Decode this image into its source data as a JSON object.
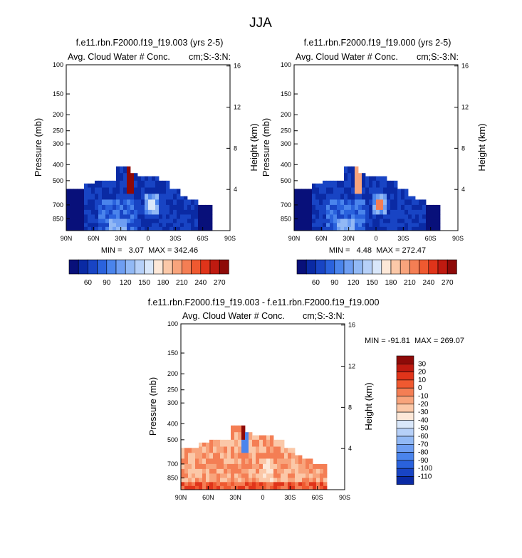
{
  "title": "JJA",
  "palette": {
    "blue_red": [
      "#08107a",
      "#0a2aa4",
      "#1844c4",
      "#2a62dd",
      "#4a84ec",
      "#6e9ef2",
      "#92b9f5",
      "#b6d0f8",
      "#d9e7fa",
      "#fde8d8",
      "#fbc8a8",
      "#f8a47c",
      "#f47e54",
      "#ef5930",
      "#e0341a",
      "#bf1a10",
      "#8e0a08"
    ]
  },
  "chart_data": [
    {
      "type": "heatmap",
      "panel": "panel1",
      "title": "f.e11.rbn.F2000.f19_f19.003 (yrs 2-5)",
      "subtitle_left": "Avg. Cloud Water # Conc.",
      "subtitle_right": "cm;S:-3:N:",
      "ylabel": "Pressure (mb)",
      "ylabel_right": "Height (km)",
      "x_ticks": [
        "90N",
        "60N",
        "30N",
        "0",
        "30S",
        "60S",
        "90S"
      ],
      "y_ticks": [
        "100",
        "150",
        "200",
        "250",
        "300",
        "400",
        "500",
        "700",
        "850"
      ],
      "y_right_ticks": [
        "16",
        "12",
        "8",
        "4"
      ],
      "stats": "MIN =   3.07  MAX = 342.46",
      "stats_min": 3.07,
      "stats_max": 342.46,
      "xlim": [
        90,
        -90
      ],
      "ylim": [
        1000,
        100
      ],
      "colorbar_levels": [
        "60",
        "90",
        "120",
        "150",
        "180",
        "210",
        "240",
        "270"
      ]
    },
    {
      "type": "heatmap",
      "panel": "panel2",
      "title": "f.e11.rbn.F2000.f19_f19.000 (yrs 2-5)",
      "subtitle_left": "Avg. Cloud Water # Conc.",
      "subtitle_right": "cm;S:-3:N:",
      "ylabel": "Pressure (mb)",
      "ylabel_right": "Height (km)",
      "x_ticks": [
        "90N",
        "60N",
        "30N",
        "0",
        "30S",
        "60S",
        "90S"
      ],
      "y_ticks": [
        "100",
        "150",
        "200",
        "250",
        "300",
        "400",
        "500",
        "700",
        "850"
      ],
      "y_right_ticks": [
        "16",
        "12",
        "8",
        "4"
      ],
      "stats": "MIN =   4.48  MAX = 272.47",
      "stats_min": 4.48,
      "stats_max": 272.47,
      "xlim": [
        90,
        -90
      ],
      "ylim": [
        1000,
        100
      ],
      "colorbar_levels": [
        "60",
        "90",
        "120",
        "150",
        "180",
        "210",
        "240",
        "270"
      ]
    },
    {
      "type": "heatmap",
      "panel": "panel3",
      "title": "f.e11.rbn.F2000.f19_f19.003 - f.e11.rbn.F2000.f19_f19.000",
      "subtitle_left": "Avg. Cloud Water # Conc.",
      "subtitle_right": "cm;S:-3:N:",
      "ylabel": "Pressure (mb)",
      "ylabel_right": "Height (km)",
      "x_ticks": [
        "90N",
        "60N",
        "30N",
        "0",
        "30S",
        "60S",
        "90S"
      ],
      "y_ticks": [
        "100",
        "150",
        "200",
        "250",
        "300",
        "400",
        "500",
        "700",
        "850"
      ],
      "y_right_ticks": [
        "16",
        "12",
        "8",
        "4"
      ],
      "stats": "MIN = -91.81  MAX = 269.07",
      "stats_min": -91.81,
      "stats_max": 269.07,
      "xlim": [
        90,
        -90
      ],
      "ylim": [
        1000,
        100
      ],
      "colorbar_levels": [
        "30",
        "20",
        "10",
        "0",
        "-10",
        "-20",
        "-30",
        "-40",
        "-50",
        "-60",
        "-70",
        "-80",
        "-90",
        "-100",
        "-110"
      ]
    }
  ]
}
